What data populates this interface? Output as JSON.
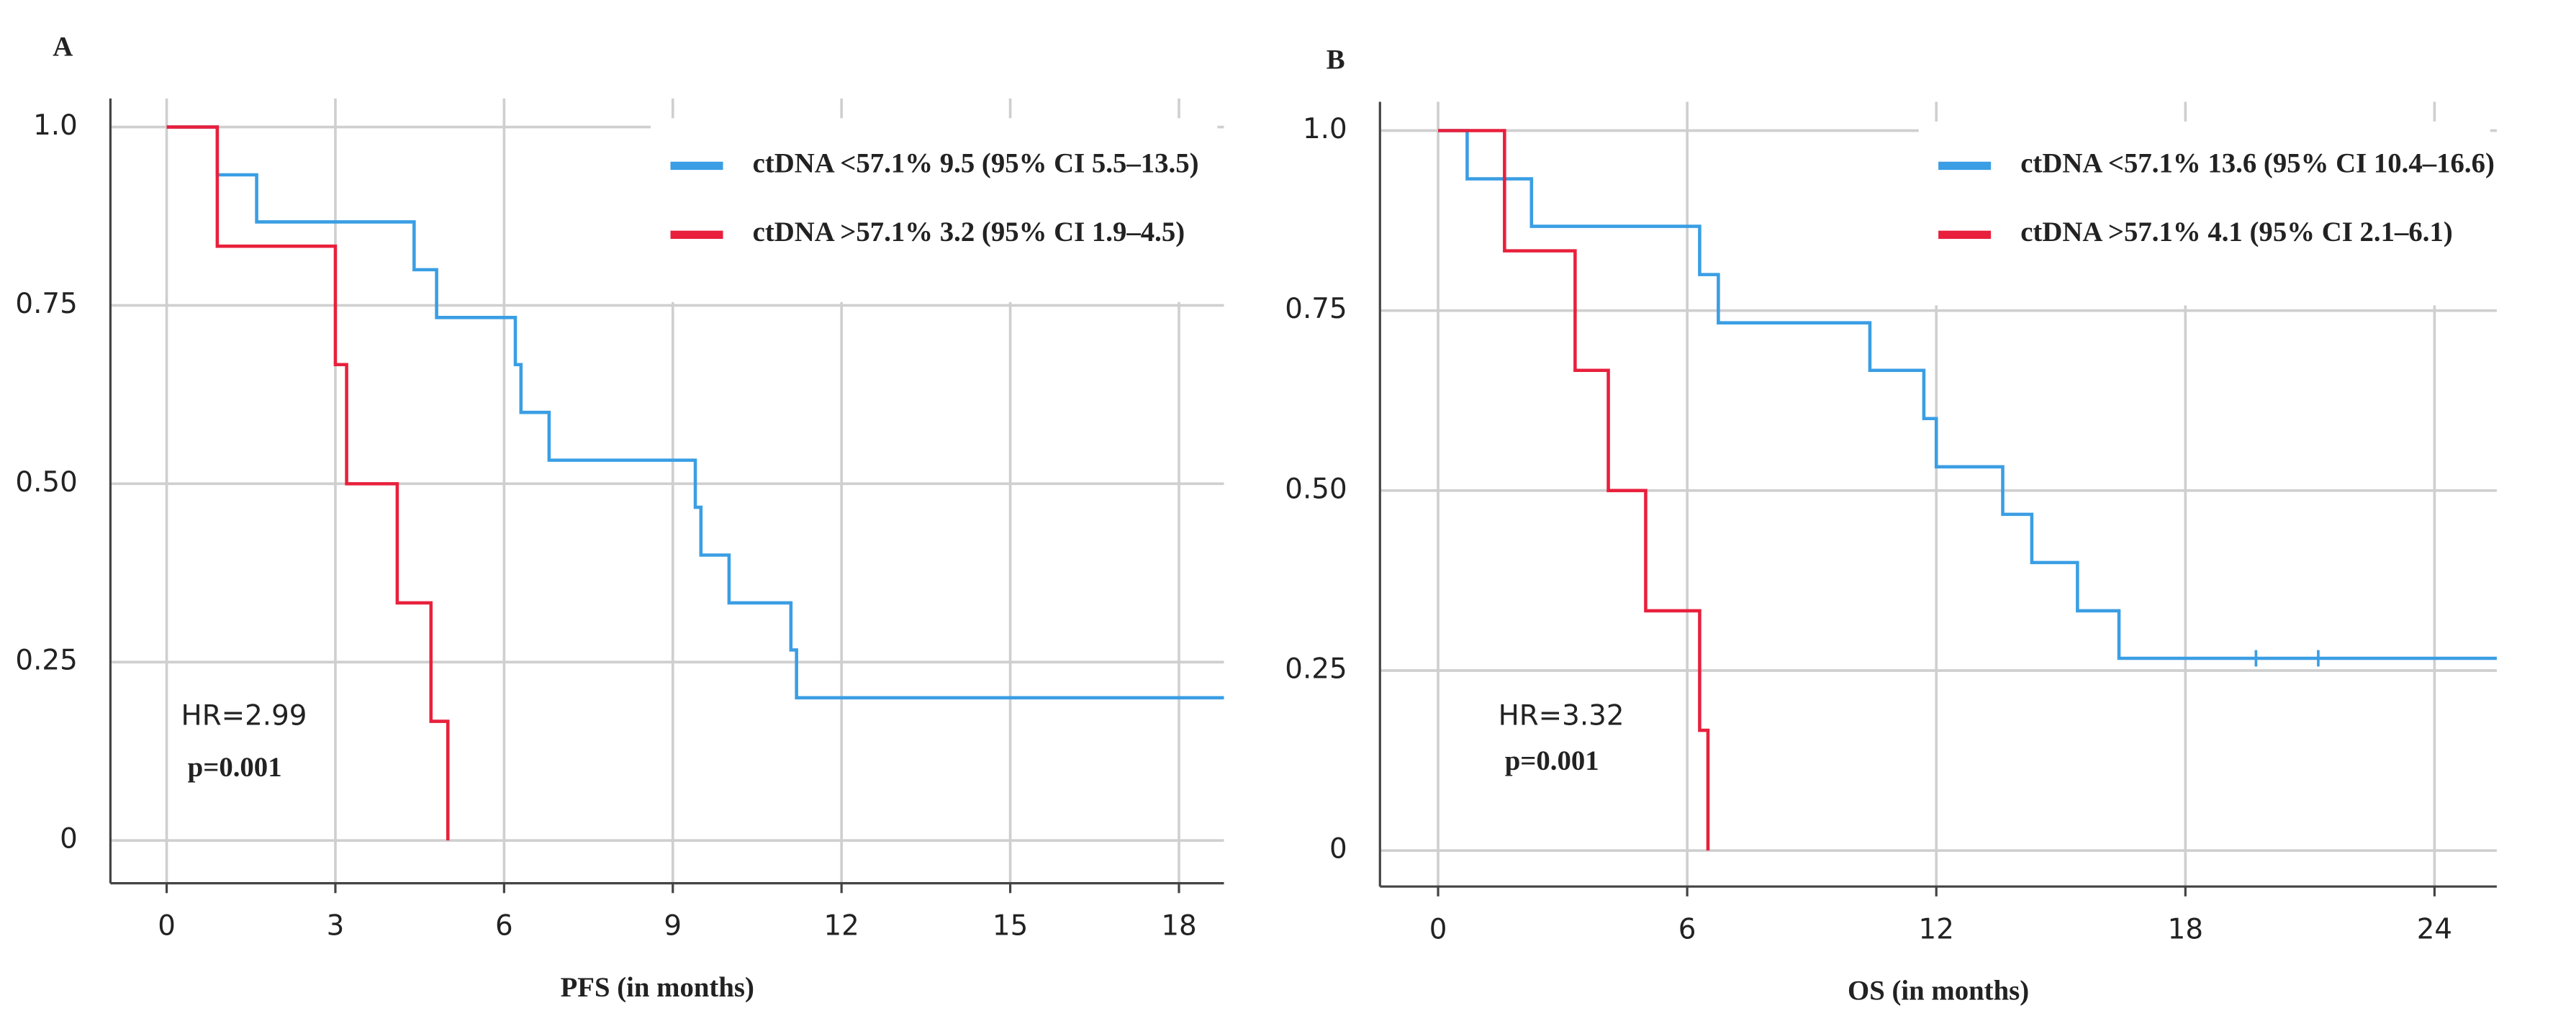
{
  "chart_data": [
    {
      "type": "step",
      "panel": "A",
      "xlabel": "PFS (in months)",
      "xlim": [
        -1,
        18.8
      ],
      "ylim": [
        -0.06,
        1.04
      ],
      "xticks": [
        0,
        3,
        6,
        9,
        12,
        15,
        18
      ],
      "yticks": [
        0,
        0.25,
        {
          "value": 0.5,
          "label": "0.50"
        },
        0.75,
        {
          "value": 1,
          "label": "1.0"
        }
      ],
      "grid": true,
      "annotations": [
        "HR=2.99",
        "p=0.001"
      ],
      "series": [
        {
          "name": "ctDNA <57.1% 9.5 (95% CI 5.5–13.5)",
          "color": "#3a9ee4",
          "x": [
            0,
            0.9,
            1.6,
            4.4,
            4.8,
            6.2,
            6.3,
            6.8,
            9.4,
            9.5,
            10.0,
            11.1,
            11.2,
            18.8
          ],
          "values": [
            1,
            0.933,
            0.867,
            0.8,
            0.733,
            0.667,
            0.6,
            0.533,
            0.467,
            0.4,
            0.333,
            0.267,
            0.2,
            0.2
          ]
        },
        {
          "name": "ctDNA >57.1% 3.2 (95% CI 1.9–4.5)",
          "color": "#e8203c",
          "x": [
            0,
            0.9,
            3.0,
            3.2,
            4.1,
            4.7,
            5.0
          ],
          "values": [
            1,
            0.833,
            0.667,
            0.5,
            0.333,
            0.167,
            0
          ]
        }
      ]
    },
    {
      "type": "step",
      "panel": "B",
      "xlabel": "OS (in months)",
      "xlim": [
        -1.4,
        25.5
      ],
      "ylim": [
        -0.05,
        1.04
      ],
      "xticks": [
        0,
        6,
        12,
        18,
        24
      ],
      "yticks": [
        0,
        0.25,
        {
          "value": 0.5,
          "label": "0.50"
        },
        0.75,
        {
          "value": 1,
          "label": "1.0"
        }
      ],
      "grid": true,
      "annotations": [
        "HR=3.32",
        "p=0.001"
      ],
      "series": [
        {
          "name": "ctDNA <57.1% 13.6 (95% CI 10.4–16.6)",
          "color": "#3a9ee4",
          "x": [
            0,
            0.7,
            2.25,
            6.3,
            6.75,
            10.4,
            11.7,
            12.0,
            13.6,
            14.3,
            15.4,
            16.4,
            25.5
          ],
          "values": [
            1,
            0.933,
            0.867,
            0.8,
            0.733,
            0.667,
            0.6,
            0.533,
            0.467,
            0.4,
            0.333,
            0.267,
            0.267
          ],
          "censored_x": [
            19.7,
            21.2
          ],
          "censored_values": [
            0.267,
            0.267
          ]
        },
        {
          "name": "ctDNA >57.1% 4.1 (95% CI 2.1–6.1)",
          "color": "#e8203c",
          "x": [
            0,
            1.6,
            3.3,
            4.1,
            5.0,
            6.3,
            6.5
          ],
          "values": [
            1,
            0.833,
            0.667,
            0.5,
            0.333,
            0.167,
            0
          ]
        }
      ]
    }
  ]
}
